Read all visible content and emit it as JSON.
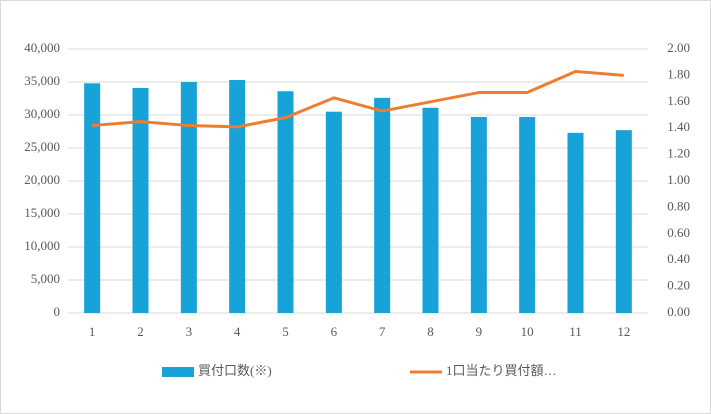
{
  "chart_data": {
    "type": "bar-line",
    "categories": [
      "1",
      "2",
      "3",
      "4",
      "5",
      "6",
      "7",
      "8",
      "9",
      "10",
      "11",
      "12"
    ],
    "series": [
      {
        "name": "買付口数(※)",
        "type": "bar",
        "color": "#17a2d8",
        "values": [
          34800,
          34100,
          35000,
          35300,
          33600,
          30500,
          32600,
          31100,
          29700,
          29700,
          27300,
          27700
        ]
      },
      {
        "name": "1口当たり買付額…",
        "type": "line",
        "axis": "y2",
        "color": "#ee7d31",
        "values": [
          1.42,
          1.45,
          1.42,
          1.41,
          1.48,
          1.63,
          1.53,
          1.6,
          1.67,
          1.67,
          1.83,
          1.8
        ]
      }
    ],
    "ylim": [
      0,
      40000
    ],
    "yticks": [
      0,
      {
        "value": 5000,
        "label": "5,000"
      },
      {
        "value": 10000,
        "label": "10,000"
      },
      {
        "value": 15000,
        "label": "15,000"
      },
      {
        "value": 20000,
        "label": "20,000"
      },
      {
        "value": 25000,
        "label": "25,000"
      },
      {
        "value": 30000,
        "label": "30,000"
      },
      {
        "value": 35000,
        "label": "35,000"
      },
      {
        "value": 40000,
        "label": "40,000"
      }
    ],
    "y2lim": [
      0,
      2
    ],
    "y2ticks": [
      {
        "value": 0,
        "label": "0.00"
      },
      {
        "value": 0.2,
        "label": "0.20"
      },
      {
        "value": 0.4,
        "label": "0.40"
      },
      {
        "value": 0.6,
        "label": "0.60"
      },
      {
        "value": 0.8,
        "label": "0.80"
      },
      {
        "value": 1,
        "label": "1.00"
      },
      {
        "value": 1.2,
        "label": "1.20"
      },
      {
        "value": 1.4,
        "label": "1.40"
      },
      {
        "value": 1.6,
        "label": "1.60"
      },
      {
        "value": 1.8,
        "label": "1.80"
      },
      {
        "value": 2,
        "label": "2.00"
      }
    ],
    "grid": true,
    "legend": "bottom"
  }
}
